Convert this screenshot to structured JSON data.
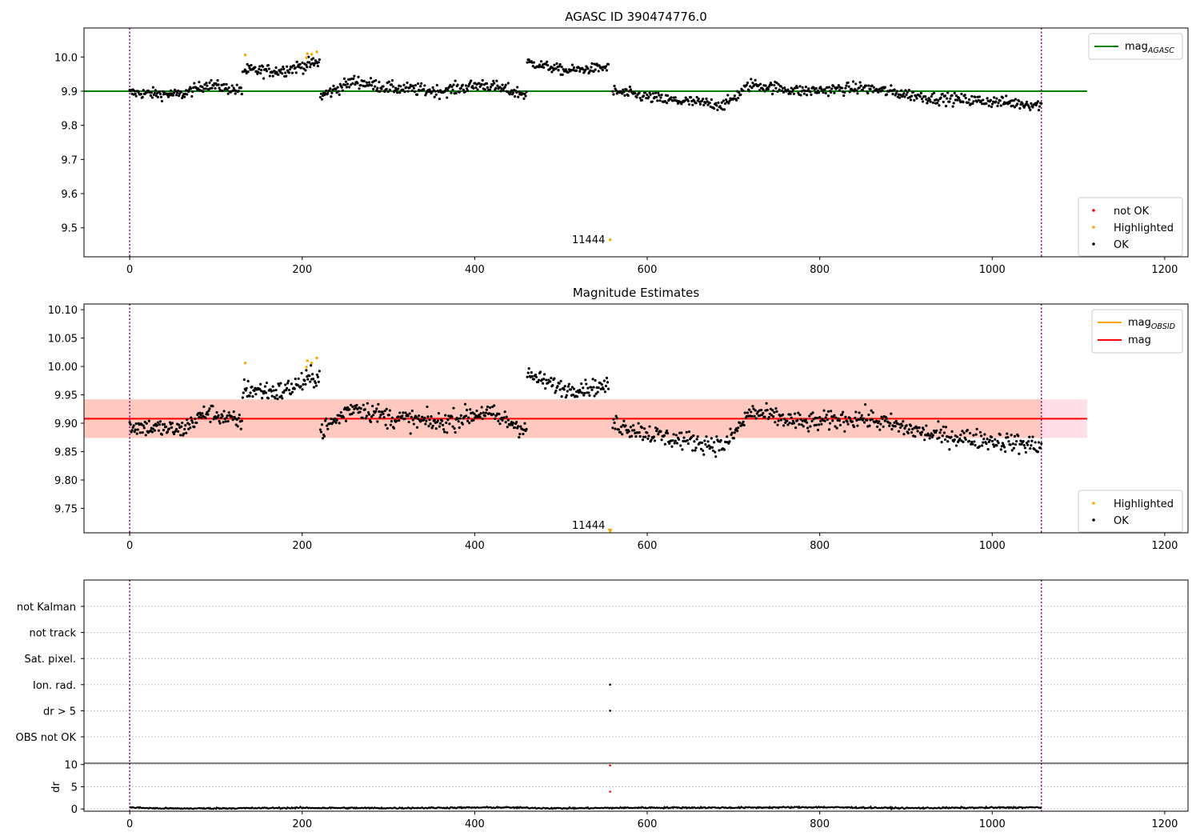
{
  "chart_data": [
    {
      "type": "scatter",
      "title": "AGASC ID 390474776.0",
      "xlabel": "",
      "ylabel": "",
      "xlim": [
        -53,
        1227
      ],
      "ylim": [
        9.415,
        10.085
      ],
      "xticks": [
        0,
        200,
        400,
        600,
        800,
        1000,
        1200
      ],
      "yticks": [
        9.5,
        9.6,
        9.7,
        9.8,
        9.9,
        10.0
      ],
      "ytick_labels": [
        "9.5",
        "9.6",
        "9.7",
        "9.8",
        "9.9",
        "10.0"
      ],
      "reference_line": {
        "label": "mag",
        "label_sub": "AGASC",
        "y": 9.9,
        "x": [
          0,
          1110
        ],
        "color": "#008000"
      },
      "vertical_lines": [
        0,
        1057
      ],
      "annotation": {
        "text": "11444",
        "x": 532,
        "y": 9.455
      },
      "legend_lines": [
        {
          "label": "mag",
          "label_sub": "AGASC",
          "color": "#008000"
        }
      ],
      "legend_points": [
        {
          "label": "not OK",
          "color": "#ff0000"
        },
        {
          "label": "Highlighted",
          "color": "#ffa500"
        },
        {
          "label": "OK",
          "color": "#000000"
        }
      ],
      "series": [
        {
          "name": "OK",
          "color": "#000000",
          "segments": [
            {
              "x0": 0,
              "x1": 130,
              "n": 140,
              "level": [
                [
                  0,
                  9.895
                ],
                [
                  60,
                  9.89
                ],
                [
                  90,
                  9.92
                ],
                [
                  130,
                  9.9
                ]
              ],
              "scatter": 0.016
            },
            {
              "x0": 131,
              "x1": 220,
              "n": 100,
              "level": [
                [
                  131,
                  9.96
                ],
                [
                  175,
                  9.96
                ],
                [
                  220,
                  9.985
                ]
              ],
              "scatter": 0.018
            },
            {
              "x0": 221,
              "x1": 460,
              "n": 250,
              "level": [
                [
                  221,
                  9.885
                ],
                [
                  260,
                  9.93
                ],
                [
                  300,
                  9.91
                ],
                [
                  360,
                  9.9
                ],
                [
                  410,
                  9.92
                ],
                [
                  460,
                  9.89
                ]
              ],
              "scatter": 0.018
            },
            {
              "x0": 461,
              "x1": 555,
              "n": 100,
              "level": [
                [
                  461,
                  9.985
                ],
                [
                  505,
                  9.96
                ],
                [
                  555,
                  9.97
                ]
              ],
              "scatter": 0.014
            },
            {
              "x0": 560,
              "x1": 1057,
              "n": 500,
              "level": [
                [
                  560,
                  9.9
                ],
                [
                  620,
                  9.875
                ],
                [
                  690,
                  9.86
                ],
                [
                  720,
                  9.92
                ],
                [
                  780,
                  9.9
                ],
                [
                  850,
                  9.91
                ],
                [
                  930,
                  9.88
                ],
                [
                  1000,
                  9.87
                ],
                [
                  1057,
                  9.86
                ]
              ],
              "scatter": 0.017
            }
          ]
        },
        {
          "name": "Highlighted",
          "color": "#ffa500",
          "points": [
            [
              134,
              10.006
            ],
            [
              205,
              9.998
            ],
            [
              206,
              10.01
            ],
            [
              211,
              10.008
            ],
            [
              217,
              10.015
            ],
            [
              557,
              9.465
            ]
          ]
        }
      ]
    },
    {
      "type": "scatter",
      "title": "Magnitude Estimates",
      "xlabel": "",
      "ylabel": "",
      "xlim": [
        -53,
        1227
      ],
      "ylim": [
        9.707,
        10.11
      ],
      "xticks": [
        0,
        200,
        400,
        600,
        800,
        1000,
        1200
      ],
      "yticks": [
        9.75,
        9.8,
        9.85,
        9.9,
        9.95,
        10.0,
        10.05,
        10.1
      ],
      "ytick_labels": [
        "9.75",
        "9.80",
        "9.85",
        "9.90",
        "9.95",
        "10.00",
        "10.05",
        "10.10"
      ],
      "band_outer": {
        "y": [
          9.874,
          9.942
        ],
        "x": [
          0,
          1110
        ],
        "color": "#ffc0cb"
      },
      "band_inner": {
        "y": [
          9.874,
          9.942
        ],
        "x": [
          0,
          1057
        ],
        "color": "#ffa07a"
      },
      "mag_line": {
        "y": 9.908,
        "x": [
          0,
          1110
        ],
        "color": "#ff0000"
      },
      "vertical_lines": [
        0,
        1057
      ],
      "annotation": {
        "text": "11444",
        "x": 532,
        "y": 9.714
      },
      "legend_lines": [
        {
          "label": "mag",
          "label_sub": "OBSID",
          "color": "#ffa500"
        },
        {
          "label": "mag",
          "label_sub": "",
          "color": "#ff0000"
        }
      ],
      "legend_points": [
        {
          "label": "Highlighted",
          "color": "#ffa500"
        },
        {
          "label": "OK",
          "color": "#000000"
        }
      ],
      "series": [
        {
          "name": "OK",
          "color": "#000000",
          "segments": [
            {
              "x0": 0,
              "x1": 130,
              "n": 140,
              "level": [
                [
                  0,
                  9.895
                ],
                [
                  60,
                  9.888
                ],
                [
                  90,
                  9.92
                ],
                [
                  130,
                  9.9
                ]
              ],
              "scatter": 0.016
            },
            {
              "x0": 131,
              "x1": 220,
              "n": 100,
              "level": [
                [
                  131,
                  9.96
                ],
                [
                  175,
                  9.955
                ],
                [
                  220,
                  9.985
                ]
              ],
              "scatter": 0.018
            },
            {
              "x0": 221,
              "x1": 460,
              "n": 250,
              "level": [
                [
                  221,
                  9.885
                ],
                [
                  260,
                  9.93
                ],
                [
                  300,
                  9.91
                ],
                [
                  360,
                  9.9
                ],
                [
                  410,
                  9.92
                ],
                [
                  460,
                  9.89
                ]
              ],
              "scatter": 0.018
            },
            {
              "x0": 461,
              "x1": 555,
              "n": 100,
              "level": [
                [
                  461,
                  9.985
                ],
                [
                  505,
                  9.96
                ],
                [
                  555,
                  9.965
                ]
              ],
              "scatter": 0.014
            },
            {
              "x0": 560,
              "x1": 1057,
              "n": 500,
              "level": [
                [
                  560,
                  9.9
                ],
                [
                  620,
                  9.875
                ],
                [
                  690,
                  9.86
                ],
                [
                  720,
                  9.92
                ],
                [
                  780,
                  9.9
                ],
                [
                  850,
                  9.91
                ],
                [
                  930,
                  9.88
                ],
                [
                  1000,
                  9.87
                ],
                [
                  1057,
                  9.86
                ]
              ],
              "scatter": 0.017
            }
          ]
        },
        {
          "name": "Highlighted",
          "color": "#ffa500",
          "points": [
            [
              134,
              10.006
            ],
            [
              205,
              9.999
            ],
            [
              206,
              10.01
            ],
            [
              211,
              10.006
            ],
            [
              217,
              10.015
            ]
          ]
        },
        {
          "name": "outlier-marker",
          "color": "#ffa500",
          "points": [
            [
              557,
              9.71
            ]
          ]
        }
      ]
    },
    {
      "type": "scatter",
      "title": "",
      "xlabel": "",
      "ylabel": "",
      "xlim": [
        -53,
        1227
      ],
      "category_labels": [
        "not Kalman",
        "not track",
        "Sat. pixel.",
        "Ion. rad.",
        "dr > 5",
        "OBS not OK"
      ],
      "vertical_lines": [
        0,
        1057
      ],
      "flag_points": [
        {
          "category": "Ion. rad.",
          "x": 557
        },
        {
          "category": "dr > 5",
          "x": 557
        }
      ]
    },
    {
      "type": "line",
      "title": "",
      "xlabel": "",
      "ylabel": "dr",
      "xlim": [
        -53,
        1227
      ],
      "ylim": [
        -0.5,
        10.3
      ],
      "xticks": [
        0,
        200,
        400,
        600,
        800,
        1000,
        1200
      ],
      "xtick_labels": [
        "0",
        "200",
        "400",
        "600",
        "800",
        "1000",
        "1200"
      ],
      "yticks": [
        0,
        5,
        10
      ],
      "ytick_labels": [
        "0",
        "5",
        "10"
      ],
      "vertical_lines": [
        0,
        1057
      ],
      "dr_level": [
        [
          0,
          0.7
        ],
        [
          30,
          0.3
        ],
        [
          60,
          0.2
        ],
        [
          200,
          0.5
        ],
        [
          300,
          0.4
        ],
        [
          430,
          0.7
        ],
        [
          500,
          0.3
        ],
        [
          600,
          0.6
        ],
        [
          700,
          0.6
        ],
        [
          800,
          0.8
        ],
        [
          900,
          0.4
        ],
        [
          1000,
          0.6
        ],
        [
          1057,
          0.7
        ]
      ],
      "outliers": [
        {
          "x": 557,
          "y": 9.8,
          "color": "#ff0000"
        },
        {
          "x": 557,
          "y": 3.9,
          "color": "#ff0000"
        }
      ]
    }
  ]
}
